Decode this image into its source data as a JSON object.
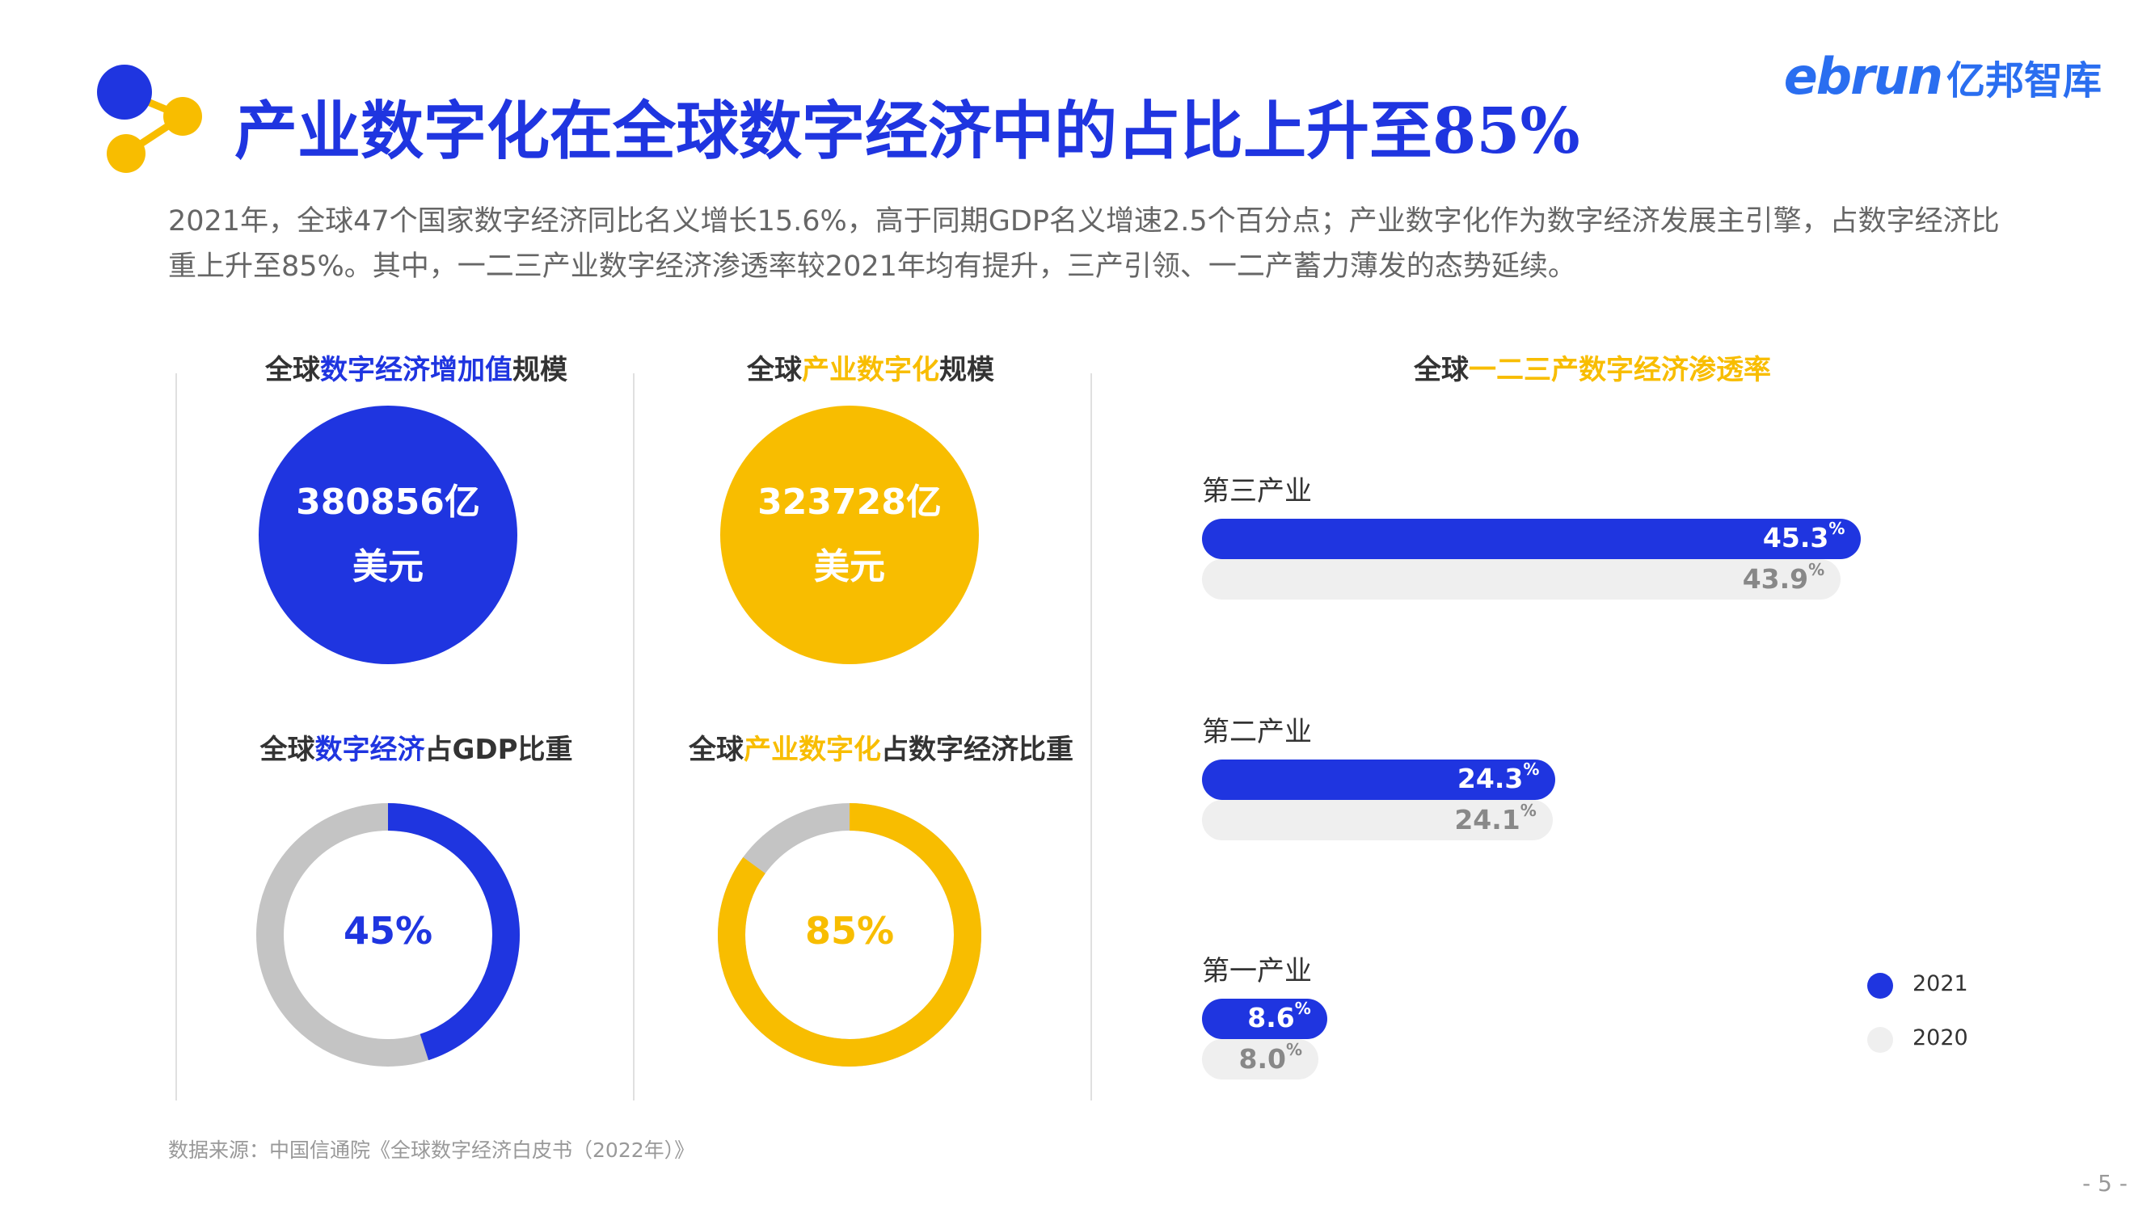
{
  "header": {
    "title": "产业数字化在全球数字经济中的占比上升至85%",
    "brand_en": "ebrun",
    "brand_cn": "亿邦智库"
  },
  "intro": "2021年，全球47个国家数字经济同比名义增长15.6%，高于同期GDP名义增速2.5个百分点；产业数字化作为数字经济发展主引擎，占数字经济比重上升至85%。其中，一二三产业数字经济渗透率较2021年均有提升，三产引领、一二产蓄力薄发的态势延续。",
  "colors": {
    "blue": "#1f35e0",
    "yellow": "#f8bd00",
    "gray": "#c4c4c4",
    "light_gray": "#efefef"
  },
  "panels": {
    "scale1": {
      "title_pre": "全球",
      "title_hl": "数字经济增加值",
      "title_post": "规模",
      "value": "380856亿",
      "unit": "美元"
    },
    "scale2": {
      "title_pre": "全球",
      "title_hl": "产业数字化",
      "title_post": "规模",
      "value": "323728亿",
      "unit": "美元"
    },
    "share1": {
      "title_pre": "全球",
      "title_hl": "数字经济",
      "title_post": "占GDP比重",
      "label": "45%"
    },
    "share2": {
      "title_pre": "全球",
      "title_hl": "产业数字化",
      "title_post": "占数字经济比重",
      "label": "85%"
    },
    "pen": {
      "title_pre": "全球",
      "title_hl": "一二三产数字经济渗透率"
    }
  },
  "chart_data": [
    {
      "type": "pie",
      "title": "全球数字经济占GDP比重",
      "categories": [
        "数字经济"
      ],
      "values": [
        45
      ]
    },
    {
      "type": "pie",
      "title": "全球产业数字化占数字经济比重",
      "categories": [
        "产业数字化"
      ],
      "values": [
        85
      ]
    },
    {
      "type": "bar",
      "title": "全球一二三产数字经济渗透率",
      "categories": [
        "第三产业",
        "第二产业",
        "第一产业"
      ],
      "series": [
        {
          "name": "2021",
          "values": [
            45.3,
            24.3,
            8.6
          ],
          "labels": [
            "45.3",
            "24.3",
            "8.6"
          ]
        },
        {
          "name": "2020",
          "values": [
            43.9,
            24.1,
            8.0
          ],
          "labels": [
            "43.9",
            "24.1",
            "8.0"
          ]
        }
      ],
      "unit": "%",
      "legend": "bottom-right"
    }
  ],
  "source": "数据来源：中国信通院《全球数字经济白皮书（2022年）》",
  "page_number": "- 5 -"
}
